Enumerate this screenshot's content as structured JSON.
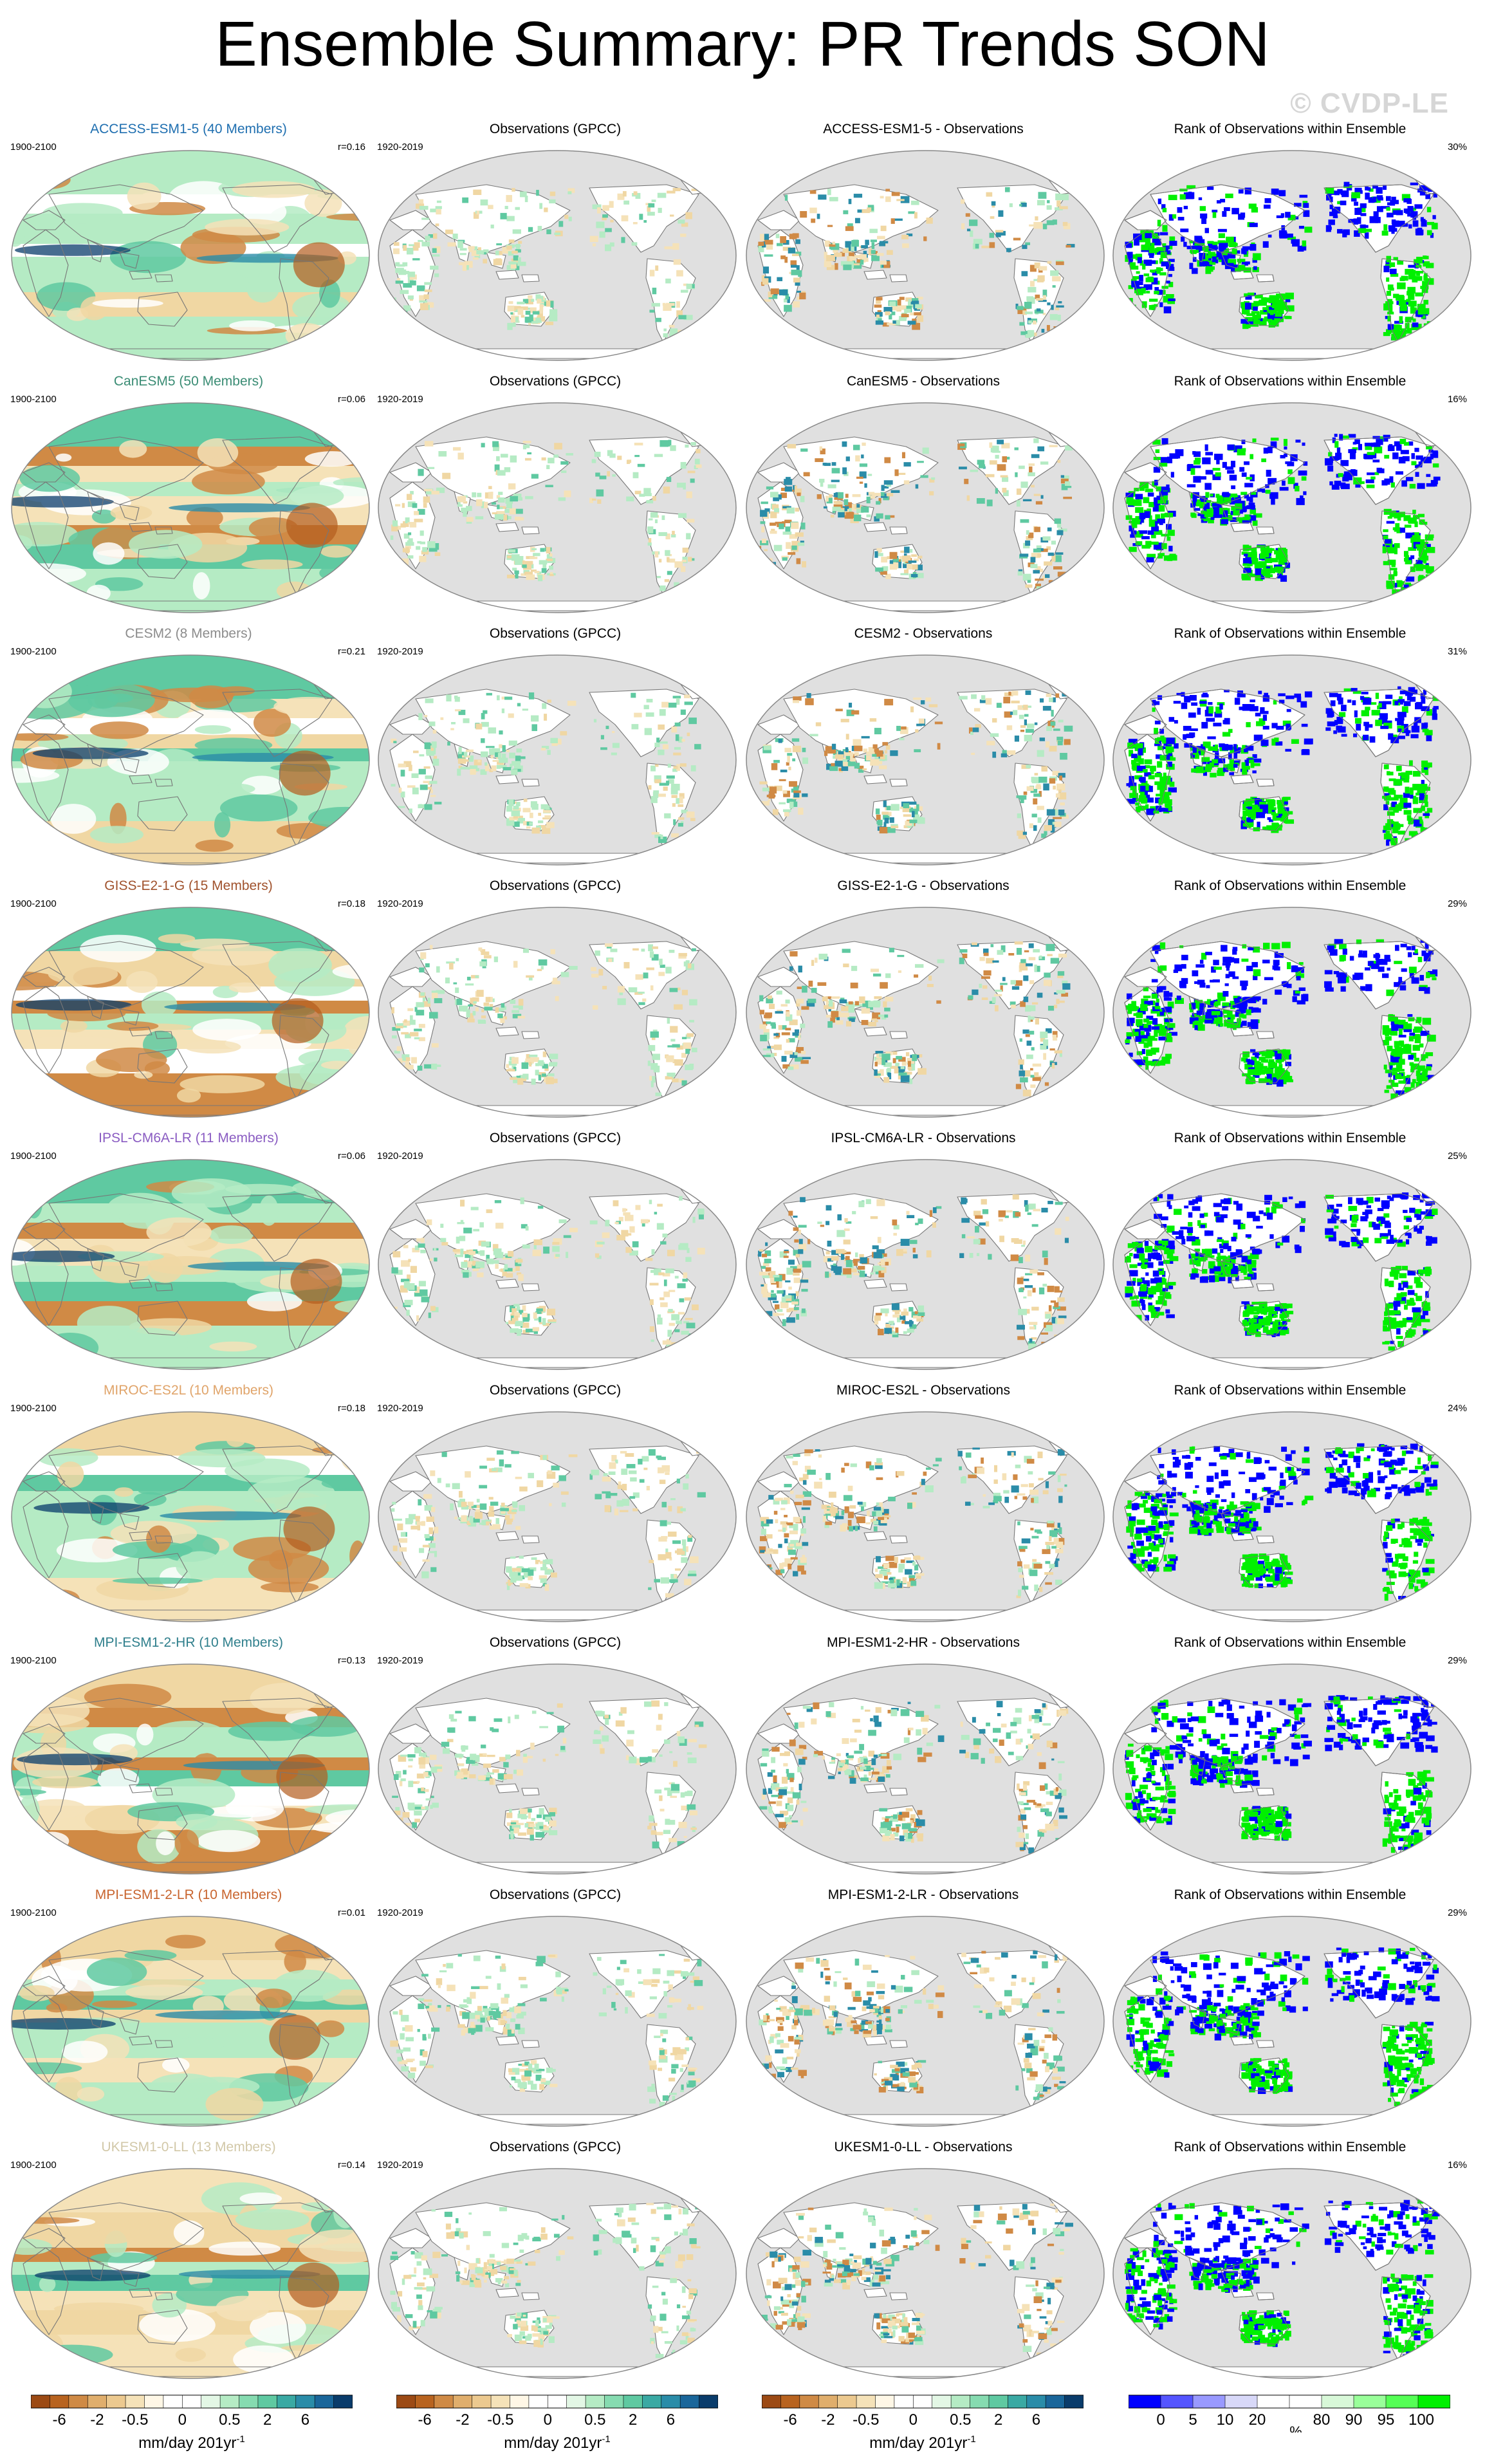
{
  "title": "Ensemble Summary: PR Trends SON",
  "watermark": "© CVDP-LE",
  "colors": {
    "land": "#e0e0e0",
    "coast": "#777777",
    "frame": "#888888",
    "dry3": "#b35c1e",
    "dry2": "#d08a45",
    "dry1": "#f0d7a3",
    "wet1": "#b5ebc4",
    "wet2": "#5fc9a1",
    "wet3": "#2a8ca8",
    "wet4": "#0a3c6b",
    "rank_low": "#0000ff",
    "rank_high": "#00f000"
  },
  "columns": {
    "obs_title": "Observations (GPCC)",
    "obs_period": "1920-2019",
    "model_period": "1900-2100",
    "rank_title": "Rank of Observations within Ensemble"
  },
  "rows": [
    {
      "model": "ACCESS-ESM1-5 (40 Members)",
      "name_color": "#1f6fb0",
      "r": "r=0.16",
      "diff_title": "ACCESS-ESM1-5 - Observations",
      "rank_pct": "30%"
    },
    {
      "model": "CanESM5 (50 Members)",
      "name_color": "#3a8c74",
      "r": "r=0.06",
      "diff_title": "CanESM5 - Observations",
      "rank_pct": "16%"
    },
    {
      "model": "CESM2 (8 Members)",
      "name_color": "#8c8c8c",
      "r": "r=0.21",
      "diff_title": "CESM2 - Observations",
      "rank_pct": "31%"
    },
    {
      "model": "GISS-E2-1-G (15 Members)",
      "name_color": "#a0522d",
      "r": "r=0.18",
      "diff_title": "GISS-E2-1-G - Observations",
      "rank_pct": "29%"
    },
    {
      "model": "IPSL-CM6A-LR (11 Members)",
      "name_color": "#8a5cc2",
      "r": "r=0.06",
      "diff_title": "IPSL-CM6A-LR - Observations",
      "rank_pct": "25%"
    },
    {
      "model": "MIROC-ES2L (10 Members)",
      "name_color": "#e0a46a",
      "r": "r=0.18",
      "diff_title": "MIROC-ES2L - Observations",
      "rank_pct": "24%"
    },
    {
      "model": "MPI-ESM1-2-HR (10 Members)",
      "name_color": "#2f7f8c",
      "r": "r=0.13",
      "diff_title": "MPI-ESM1-2-HR - Observations",
      "rank_pct": "29%"
    },
    {
      "model": "MPI-ESM1-2-LR (10 Members)",
      "name_color": "#c8642e",
      "r": "r=0.01",
      "diff_title": "MPI-ESM1-2-LR - Observations",
      "rank_pct": "29%"
    },
    {
      "model": "UKESM1-0-LL (13 Members)",
      "name_color": "#d2c8a8",
      "r": "r=0.14",
      "diff_title": "UKESM1-0-LL - Observations",
      "rank_pct": "16%"
    }
  ],
  "colorbars": {
    "trend": {
      "labels": [
        "-6",
        "-2",
        "-0.5",
        "0",
        "0.5",
        "2",
        "6"
      ],
      "colors": [
        "#9c4a14",
        "#b8631f",
        "#cf8a45",
        "#e0ae6c",
        "#ecc98f",
        "#f5e2b8",
        "#fff7e6",
        "#ffffff",
        "#ffffff",
        "#e3f7e5",
        "#b5ebc4",
        "#86dbb0",
        "#5fc9a1",
        "#3aa9a3",
        "#2a8ca8",
        "#1a669a",
        "#0a3c6b"
      ],
      "units": "mm/day 201yr",
      "units_exp": "-1"
    },
    "rank": {
      "labels": [
        "0",
        "5",
        "10",
        "20",
        "%",
        "80",
        "90",
        "95",
        "100"
      ],
      "colors": [
        "#0000ff",
        "#5555ff",
        "#9999ff",
        "#d8d8f8",
        "#ffffff",
        "#ffffff",
        "#d8f8d8",
        "#99ff99",
        "#55ff55",
        "#00f000"
      ],
      "units": "%"
    }
  }
}
